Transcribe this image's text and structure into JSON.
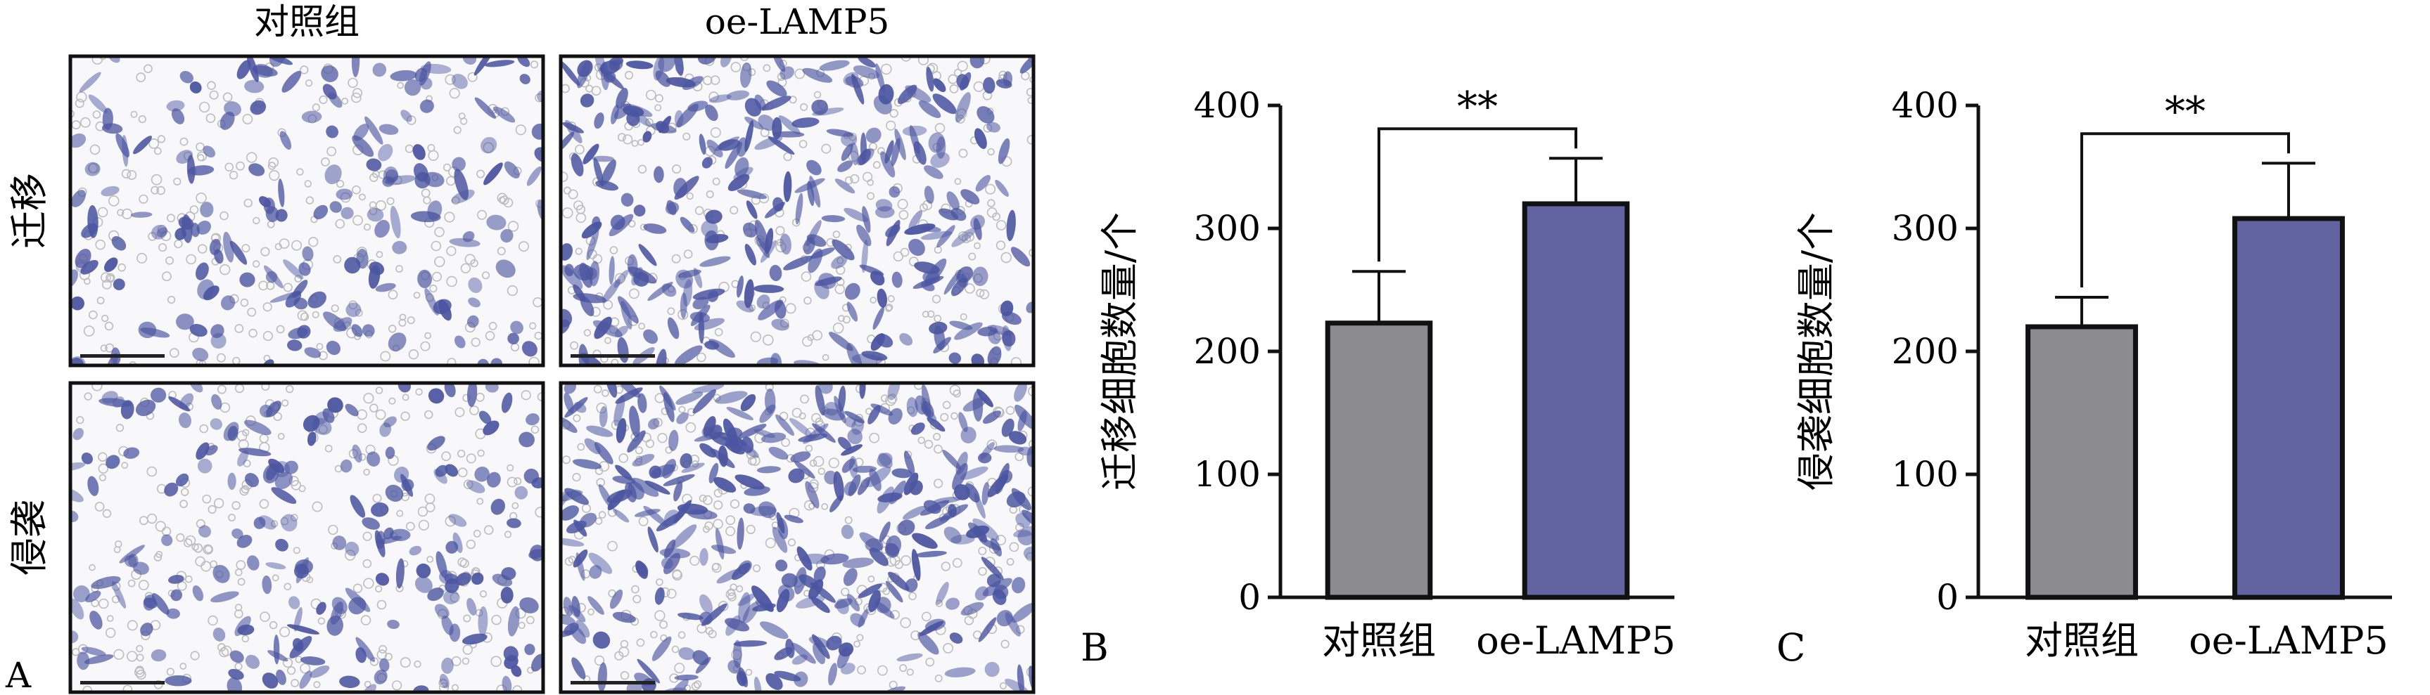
{
  "panel_letters": {
    "a": "A",
    "b": "B",
    "c": "C"
  },
  "micrograph": {
    "col_labels": [
      "对照组",
      "oe-LAMP5"
    ],
    "row_labels": [
      "迁移",
      "侵袭"
    ]
  },
  "colors": {
    "control_bar": "#8c8c8e",
    "treatment_bar": "#6263a1",
    "cell_stain": "#4b55a0",
    "pore": "#bdbdbd"
  },
  "chart_data": [
    {
      "type": "bar",
      "categories": [
        "对照组",
        "oe-LAMP5"
      ],
      "values": [
        223,
        320
      ],
      "error": [
        42,
        37
      ],
      "ylabel": "迁移细胞数量/个",
      "xlabel": "",
      "ylim": [
        0,
        400
      ],
      "yticks": [
        "0",
        "100",
        "200",
        "300",
        "400"
      ],
      "grid": false,
      "significance": {
        "label": "**",
        "between": [
          0,
          1
        ]
      }
    },
    {
      "type": "bar",
      "categories": [
        "对照组",
        "oe-LAMP5"
      ],
      "values": [
        220,
        308
      ],
      "error": [
        24,
        45
      ],
      "ylabel": "侵袭细胞数量/个",
      "xlabel": "",
      "ylim": [
        0,
        400
      ],
      "yticks": [
        "0",
        "100",
        "200",
        "300",
        "400"
      ],
      "grid": false,
      "significance": {
        "label": "**",
        "between": [
          0,
          1
        ]
      }
    }
  ]
}
